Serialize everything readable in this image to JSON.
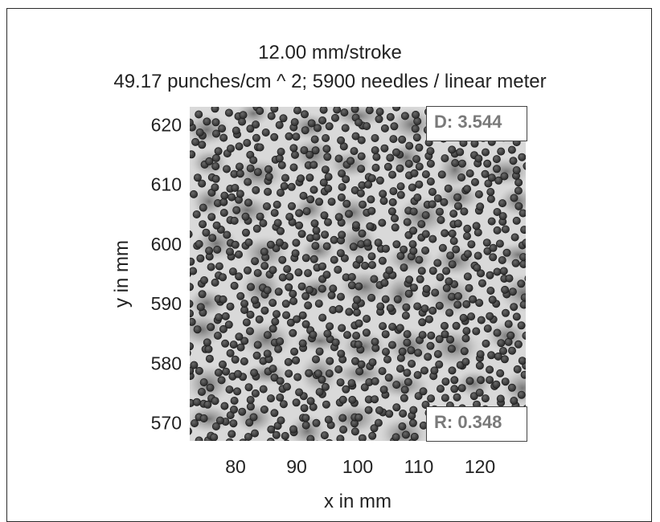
{
  "chart_data": {
    "type": "scatter",
    "title": "12.00 mm/stroke",
    "subtitle": "49.17 punches/cm ^ 2;   5900 needles / linear meter",
    "xlabel": "x in mm",
    "ylabel": "y in mm",
    "xlim": [
      72.5,
      127.5
    ],
    "ylim": [
      567,
      623
    ],
    "xticks": [
      80,
      90,
      100,
      110,
      120
    ],
    "yticks": [
      570,
      580,
      590,
      600,
      610,
      620
    ],
    "grid": false,
    "background": "grayscale density map",
    "marker_color": "#3a3a3a",
    "annotations": [
      {
        "label": "D: 3.544",
        "position": "top-right"
      },
      {
        "label": "R: 0.348",
        "position": "bottom-right"
      }
    ]
  }
}
